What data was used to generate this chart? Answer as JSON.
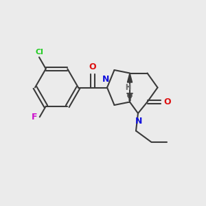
{
  "background_color": "#ebebeb",
  "bond_color": "#3a3a3a",
  "atom_colors": {
    "N": "#1010dd",
    "O": "#dd1010",
    "Cl": "#22cc22",
    "F": "#cc11cc",
    "H": "#707070"
  },
  "figsize": [
    3.0,
    3.0
  ],
  "dpi": 100
}
